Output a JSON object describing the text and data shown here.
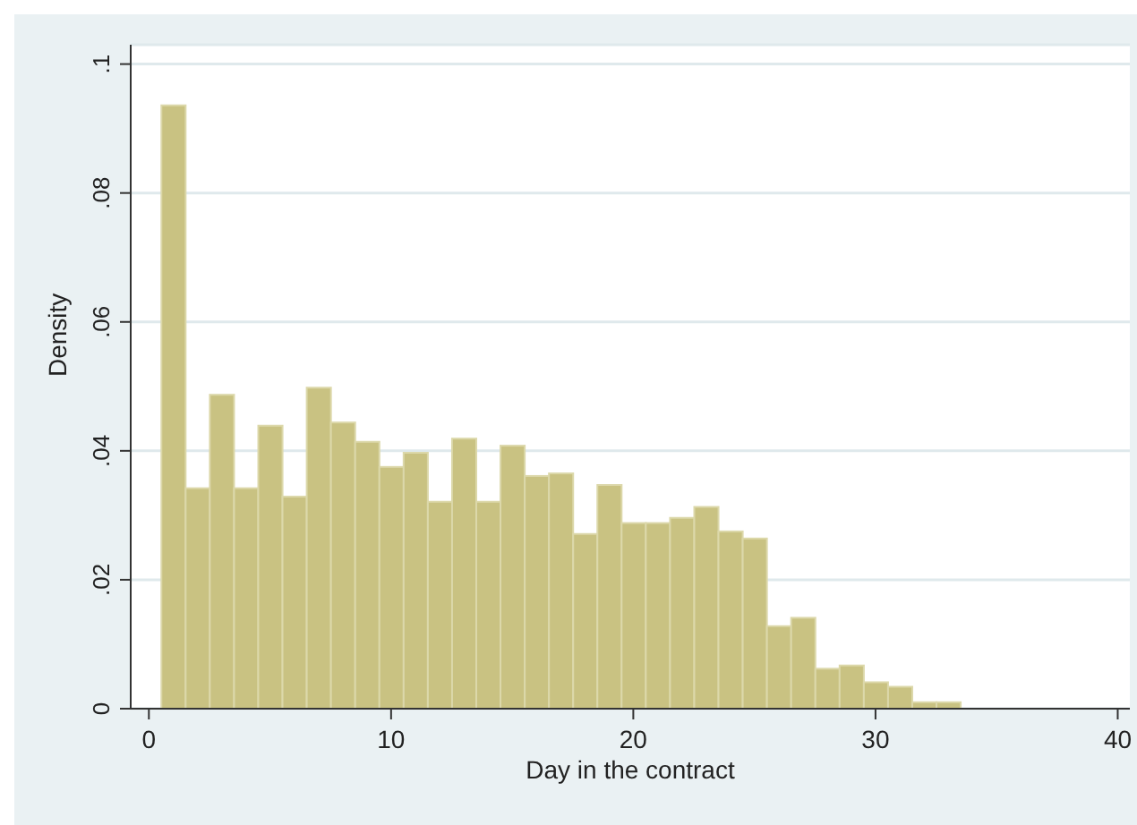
{
  "chart_data": {
    "type": "histogram",
    "xlabel": "Day in the contract",
    "ylabel": "Density",
    "bins": [
      0.5,
      1.5,
      2.5,
      3.5,
      4.5,
      5.5,
      6.5,
      7.5,
      8.5,
      9.5,
      10.5,
      11.5,
      12.5,
      13.5,
      14.5,
      15.5,
      16.5,
      17.5,
      18.5,
      19.5,
      20.5,
      21.5,
      22.5,
      23.5,
      24.5,
      25.5,
      26.5,
      27.5,
      28.5,
      29.5,
      30.5,
      31.5,
      32.5,
      33.5
    ],
    "values": [
      0.0936,
      0.0342,
      0.0487,
      0.0342,
      0.0439,
      0.0329,
      0.0498,
      0.0444,
      0.0414,
      0.0375,
      0.0397,
      0.0321,
      0.0419,
      0.0321,
      0.0408,
      0.0361,
      0.0365,
      0.0271,
      0.0347,
      0.0288,
      0.0288,
      0.0296,
      0.0313,
      0.0275,
      0.0264,
      0.0128,
      0.0141,
      0.0062,
      0.0067,
      0.0041,
      0.0034,
      0.001,
      0.001
    ],
    "color": "#c9c282",
    "xlim": [
      -0.75,
      40.5
    ],
    "xticks": [
      0,
      10,
      20,
      30,
      40
    ],
    "ylim": [
      0,
      0.103
    ],
    "yticks": [
      {
        "value": 0,
        "label": "0"
      },
      {
        "value": 0.02,
        "label": ".02"
      },
      {
        "value": 0.04,
        "label": ".04"
      },
      {
        "value": 0.06,
        "label": ".06"
      },
      {
        "value": 0.08,
        "label": ".08"
      },
      {
        "value": 0.1,
        "label": ".1"
      }
    ],
    "grid": "y"
  }
}
